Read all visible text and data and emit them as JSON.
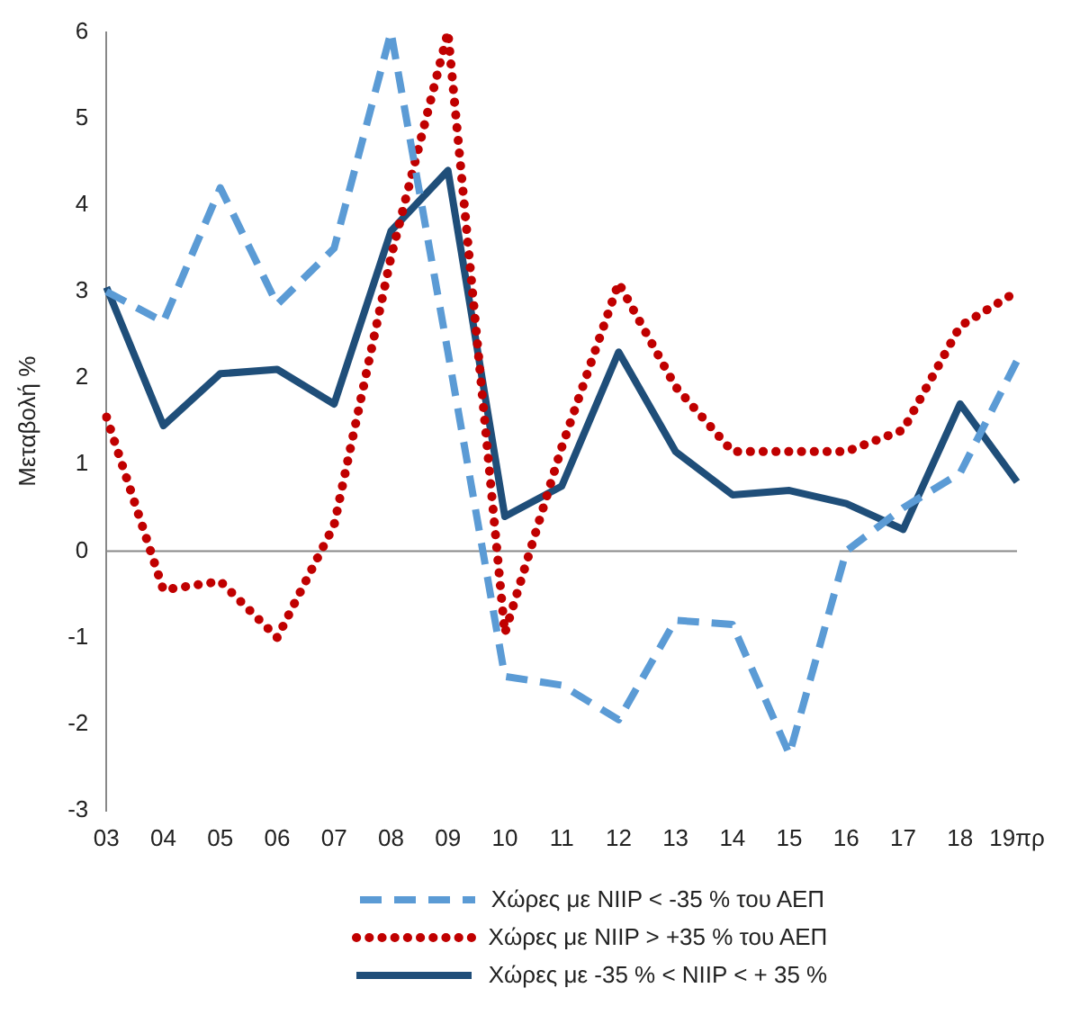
{
  "chart_data": {
    "type": "line",
    "ylabel": "Μεταβολή %",
    "categories": [
      "03",
      "04",
      "05",
      "06",
      "07",
      "08",
      "09",
      "10",
      "11",
      "12",
      "13",
      "14",
      "15",
      "16",
      "17",
      "18",
      "19πρ"
    ],
    "series": [
      {
        "name": "Χώρες με NIIP < -35 % του ΑΕΠ",
        "color": "#5b9bd5",
        "line_style": "dashed",
        "values": [
          3.0,
          2.65,
          4.2,
          2.85,
          3.5,
          6.0,
          2.3,
          -1.45,
          -1.55,
          -1.95,
          -0.8,
          -0.85,
          -2.35,
          0.0,
          0.5,
          0.9,
          2.2
        ]
      },
      {
        "name": "Χώρες με NIIP > +35 % του ΑΕΠ",
        "color": "#c00000",
        "line_style": "dotted",
        "values": [
          1.55,
          -0.45,
          -0.35,
          -1.0,
          0.3,
          3.4,
          6.0,
          -0.95,
          1.2,
          3.1,
          1.9,
          1.15,
          1.15,
          1.15,
          1.4,
          2.6,
          3.0
        ]
      },
      {
        "name": "Χώρες με -35 % < NIIP < + 35 %",
        "color": "#1f4e79",
        "line_style": "solid",
        "values": [
          3.05,
          1.45,
          2.05,
          2.1,
          1.7,
          3.7,
          4.4,
          0.4,
          0.75,
          2.3,
          1.15,
          0.65,
          0.7,
          0.55,
          0.25,
          1.7,
          0.8
        ]
      }
    ],
    "ylim": [
      -3,
      6
    ],
    "yticks": [
      -3,
      -2,
      -1,
      0,
      1,
      2,
      3,
      4,
      5,
      6
    ],
    "ref_lines": [
      {
        "axis": "y",
        "value": 0,
        "color": "#888888"
      }
    ],
    "grid": false,
    "legend": "bottom",
    "marker": "none"
  }
}
